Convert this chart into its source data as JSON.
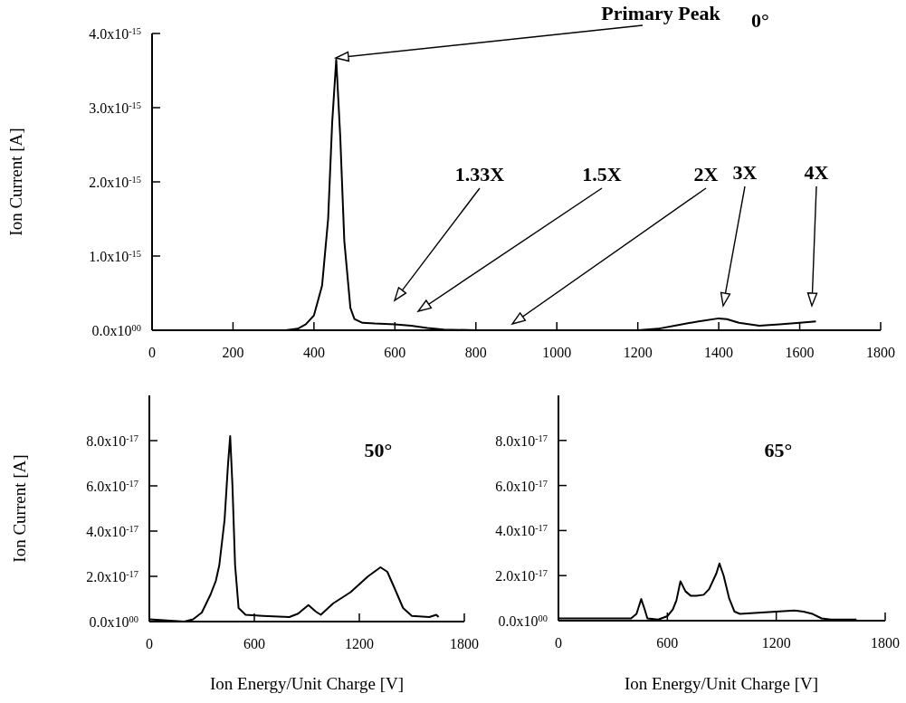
{
  "chart_data": [
    {
      "type": "line",
      "ylabel": "Ion Current [A]",
      "xlim": [
        0,
        1800
      ],
      "xticks": [
        0,
        200,
        400,
        600,
        800,
        1000,
        1200,
        1400,
        1600,
        1800
      ],
      "ylim": [
        0,
        4e-15
      ],
      "yticks": [
        {
          "value": 0,
          "label": "0.0x10$^{00}$"
        },
        {
          "value": 1e-15,
          "label": "1.0x10$^{-15}$"
        },
        {
          "value": 2e-15,
          "label": "2.0x10$^{-15}$"
        },
        {
          "value": 3e-15,
          "label": "3.0x10$^{-15}$"
        },
        {
          "value": 4e-15,
          "label": "4.0x10$^{-15}$"
        }
      ],
      "series": [
        {
          "color": "#000000",
          "x": [
            330,
            360,
            380,
            400,
            420,
            435,
            445,
            455,
            465,
            475,
            490,
            500,
            520,
            550,
            600,
            640,
            680,
            720,
            800,
            900,
            1000,
            1100,
            1200,
            1250,
            1300,
            1350,
            1400,
            1420,
            1450,
            1500,
            1550,
            1600,
            1640
          ],
          "values": [
            0,
            2e-17,
            8e-17,
            2e-16,
            6e-16,
            1.5e-15,
            2.8e-15,
            3.65e-15,
            2.6e-15,
            1.2e-15,
            3e-16,
            1.5e-16,
            1e-16,
            9e-17,
            8e-17,
            6e-17,
            3e-17,
            1e-17,
            0,
            0,
            0,
            0,
            0,
            2e-17,
            7e-17,
            1.2e-16,
            1.6e-16,
            1.5e-16,
            1e-16,
            6e-17,
            8e-17,
            1e-16,
            1.2e-16
          ]
        }
      ],
      "annotations": [
        "0°",
        "Primary Peak",
        "1.33X",
        "1.5X",
        "2X",
        "3X",
        "4X"
      ]
    },
    {
      "type": "line",
      "ylabel": "Ion Current [A]",
      "xlabel": "Ion Energy/Unit Charge [V]",
      "xlim": [
        0,
        1800
      ],
      "xticks": [
        0,
        600,
        1200,
        1800
      ],
      "ylim": [
        0,
        1e-16
      ],
      "yticks": [
        {
          "value": 0,
          "label": "0.0x10$^{00}$"
        },
        {
          "value": 2e-17,
          "label": "2.0x10$^{-17}$"
        },
        {
          "value": 4e-17,
          "label": "4.0x10$^{-17}$"
        },
        {
          "value": 6e-17,
          "label": "6.0x10$^{-17}$"
        },
        {
          "value": 8e-17,
          "label": "8.0x10$^{-17}$"
        }
      ],
      "series": [
        {
          "color": "#000000",
          "x": [
            0,
            100,
            200,
            250,
            300,
            350,
            380,
            400,
            430,
            450,
            462,
            475,
            490,
            510,
            550,
            650,
            800,
            850,
            909,
            950,
            980,
            1050,
            1150,
            1250,
            1321,
            1360,
            1400,
            1450,
            1500,
            1600,
            1640,
            1653
          ],
          "values": [
            1e-18,
            5e-19,
            0,
            1e-18,
            4e-18,
            1.2e-17,
            1.8e-17,
            2.5e-17,
            4.5e-17,
            7e-17,
            8.2e-17,
            6e-17,
            2.5e-17,
            6e-18,
            3e-18,
            2.5e-18,
            2e-18,
            3.5e-18,
            7.3e-18,
            4.5e-18,
            3e-18,
            8e-18,
            1.3e-17,
            2e-17,
            2.4e-17,
            2.2e-17,
            1.5e-17,
            6e-18,
            2.5e-18,
            2e-18,
            3e-18,
            2e-18
          ]
        }
      ],
      "annotations": [
        "50°"
      ]
    },
    {
      "type": "line",
      "xlabel": "Ion Energy/Unit Charge [V]",
      "xlim": [
        0,
        1800
      ],
      "xticks": [
        0,
        600,
        1200,
        1800
      ],
      "ylim": [
        0,
        1e-16
      ],
      "yticks": [
        {
          "value": 0,
          "label": "0.0x10$^{00}$"
        },
        {
          "value": 2e-17,
          "label": "2.0x10$^{-17}$"
        },
        {
          "value": 4e-17,
          "label": "4.0x10$^{-17}$"
        },
        {
          "value": 6e-17,
          "label": "6.0x10$^{-17}$"
        },
        {
          "value": 8e-17,
          "label": "8.0x10$^{-17}$"
        }
      ],
      "series": [
        {
          "color": "#000000",
          "x": [
            0,
            200,
            400,
            430,
            456,
            475,
            490,
            550,
            600,
            630,
            650,
            672,
            700,
            730,
            760,
            800,
            830,
            870,
            887,
            910,
            940,
            970,
            1000,
            1100,
            1200,
            1300,
            1350,
            1400,
            1450,
            1500,
            1642
          ],
          "values": [
            1e-18,
            1e-18,
            1e-18,
            3e-18,
            9.6e-18,
            5e-18,
            1e-18,
            5e-19,
            2e-18,
            5e-18,
            9e-18,
            1.75e-17,
            1.3e-17,
            1.1e-17,
            1.1e-17,
            1.15e-17,
            1.4e-17,
            2.1e-17,
            2.54e-17,
            2e-17,
            1e-17,
            4e-18,
            3e-18,
            3.5e-18,
            4e-18,
            4.5e-18,
            4e-18,
            3e-18,
            1e-18,
            5e-19,
            5e-19
          ]
        }
      ],
      "annotations": [
        "65°"
      ]
    }
  ]
}
